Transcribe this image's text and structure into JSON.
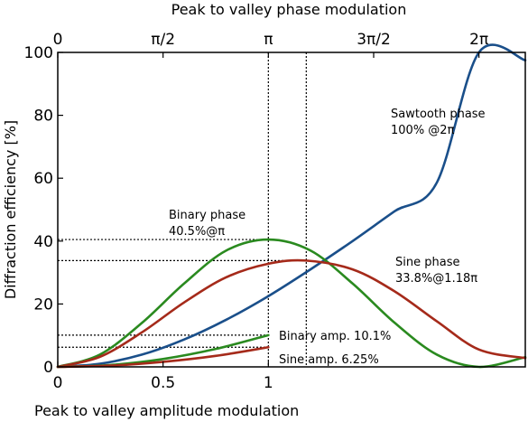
{
  "chart_data": {
    "type": "line",
    "xlabel_bottom": "Peak to valley amplitude modulation",
    "xlabel_top": "Peak to valley phase modulation",
    "ylabel": "Diffraction efficiency [%]",
    "ylim": [
      0,
      100
    ],
    "xlim_phase_over_pi": [
      0,
      2.22
    ],
    "grid": false,
    "bottom_ticks": [
      {
        "label": "0",
        "at_phase_over_pi": 0
      },
      {
        "label": "0.5",
        "at_phase_over_pi": 0.5
      },
      {
        "label": "1",
        "at_phase_over_pi": 1
      }
    ],
    "top_ticks": [
      {
        "label": "0",
        "at_phase_over_pi": 0
      },
      {
        "label": "π/2",
        "at_phase_over_pi": 0.5
      },
      {
        "label": "π",
        "at_phase_over_pi": 1
      },
      {
        "label": "3π/2",
        "at_phase_over_pi": 1.5
      },
      {
        "label": "2π",
        "at_phase_over_pi": 2
      }
    ],
    "y_ticks": [
      "0",
      "20",
      "40",
      "60",
      "80",
      "100"
    ],
    "series": [
      {
        "color": "#1a4f8a",
        "x": [
          0,
          0.2,
          0.4,
          0.6,
          0.8,
          1.0,
          1.2,
          1.4,
          1.6,
          1.8,
          2.0,
          2.22
        ],
        "values": [
          0,
          1.0,
          3.9,
          8.7,
          15.0,
          22.5,
          31.0,
          40.0,
          49.5,
          58.6,
          100,
          97.5
        ]
      },
      {
        "color": "#2a8a1f",
        "x": [
          0,
          0.2,
          0.4,
          0.6,
          0.8,
          1.0,
          1.2,
          1.4,
          1.6,
          1.8,
          2.0,
          2.22
        ],
        "values": [
          0,
          3.9,
          14.0,
          26.5,
          37.0,
          40.5,
          37.0,
          26.5,
          14.0,
          3.9,
          0,
          3.1
        ]
      },
      {
        "color": "#a52a1a",
        "x": [
          0,
          0.2,
          0.4,
          0.6,
          0.8,
          1.0,
          1.18,
          1.4,
          1.6,
          1.8,
          2.0,
          2.22
        ],
        "values": [
          0,
          3.2,
          11.0,
          20.5,
          28.5,
          32.8,
          33.8,
          31.0,
          24.0,
          14.5,
          5.5,
          2.8
        ]
      },
      {
        "color": "#2a8a1f",
        "x": [
          0,
          0.25,
          0.5,
          0.75,
          1.0
        ],
        "values": [
          0,
          0.6,
          2.5,
          5.7,
          10.1
        ]
      },
      {
        "color": "#a52a1a",
        "x": [
          0,
          0.25,
          0.5,
          0.75,
          1.0
        ],
        "values": [
          0,
          0.4,
          1.6,
          3.5,
          6.25
        ]
      }
    ],
    "reference_lines": {
      "vertical_at_phase_over_pi": [
        1.0,
        1.18
      ],
      "horizontal": [
        {
          "y": 40.5,
          "to_phase_over_pi": 1.0
        },
        {
          "y": 33.8,
          "to_phase_over_pi": 1.18
        },
        {
          "y": 10.1,
          "to_phase_over_pi": 1.0
        },
        {
          "y": 6.25,
          "to_phase_over_pi": 1.0
        }
      ]
    },
    "annotations": [
      {
        "lines": [
          "Sawtooth phase",
          "100% @2π"
        ]
      },
      {
        "lines": [
          "Binary phase",
          "40.5%@π"
        ]
      },
      {
        "lines": [
          "Sine phase",
          "33.8%@1.18π"
        ]
      },
      {
        "lines": [
          "Binary amp. 10.1%"
        ]
      },
      {
        "lines": [
          "Sine amp. 6.25%"
        ]
      }
    ]
  }
}
